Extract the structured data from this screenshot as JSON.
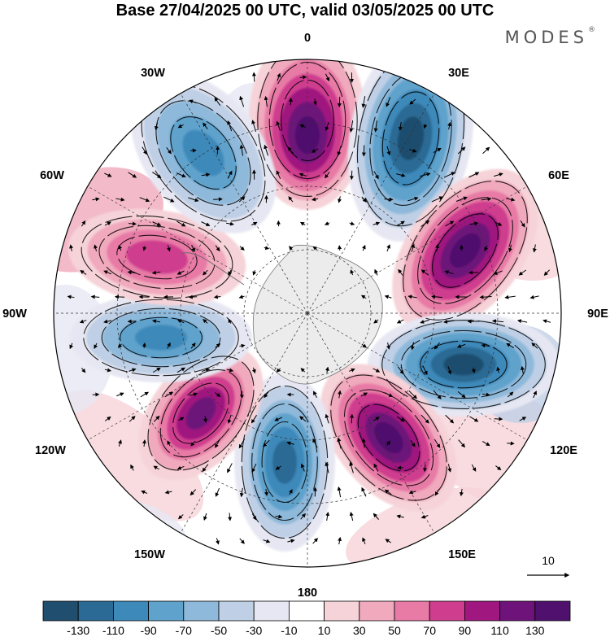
{
  "title": "Base 27/04/2025 00 UTC, valid 03/05/2025 00 UTC",
  "brand": {
    "text": "MODES",
    "mark": "®"
  },
  "map": {
    "projection": "south-polar-stereographic",
    "longitude_labels": [
      "0",
      "30E",
      "60E",
      "90E",
      "120E",
      "150E",
      "180",
      "150W",
      "120W",
      "90W",
      "60W",
      "30W"
    ],
    "field_pattern": "wavenumber-5 anomaly, alternating positive (pink/purple) and negative (blue) lobes",
    "vector_reference": {
      "label": "10"
    }
  },
  "colorbar": {
    "tick_labels": [
      "-130",
      "-110",
      "-90",
      "-70",
      "-50",
      "-30",
      "-10",
      "10",
      "30",
      "50",
      "70",
      "90",
      "110",
      "130"
    ],
    "colors": [
      "#1f4e6e",
      "#2a6a94",
      "#3d89ba",
      "#5fa2cc",
      "#8fb9da",
      "#bfd0e6",
      "#e6e7f2",
      "#ffffff",
      "#f6d3d8",
      "#f0a9bd",
      "#e87aa6",
      "#cf3e8e",
      "#a0177f",
      "#6d1379",
      "#4f106e"
    ]
  }
}
